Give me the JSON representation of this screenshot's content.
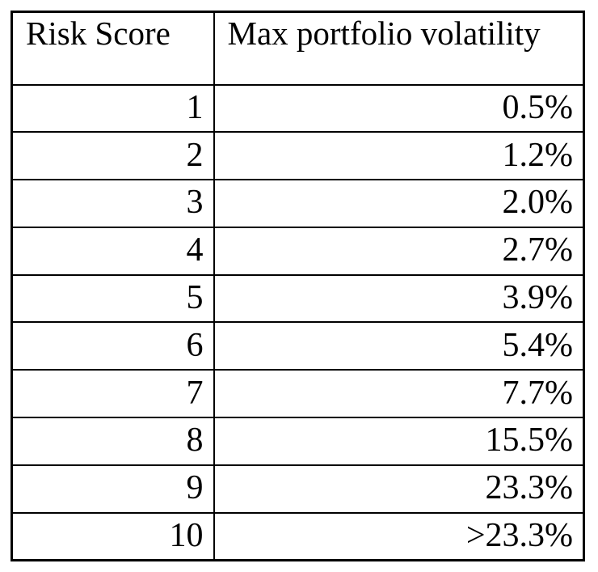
{
  "table": {
    "columns": [
      "Risk Score",
      "Max portfolio volatility"
    ],
    "rows": [
      {
        "score": "1",
        "volatility": "0.5%"
      },
      {
        "score": "2",
        "volatility": "1.2%"
      },
      {
        "score": "3",
        "volatility": "2.0%"
      },
      {
        "score": "4",
        "volatility": "2.7%"
      },
      {
        "score": "5",
        "volatility": "3.9%"
      },
      {
        "score": "6",
        "volatility": "5.4%"
      },
      {
        "score": "7",
        "volatility": "7.7%"
      },
      {
        "score": "8",
        "volatility": "15.5%"
      },
      {
        "score": "9",
        "volatility": "23.3%"
      },
      {
        "score": "10",
        "volatility": ">23.3%"
      }
    ],
    "colors": {
      "border": "#000000",
      "text": "#000000",
      "background": "#ffffff"
    }
  }
}
